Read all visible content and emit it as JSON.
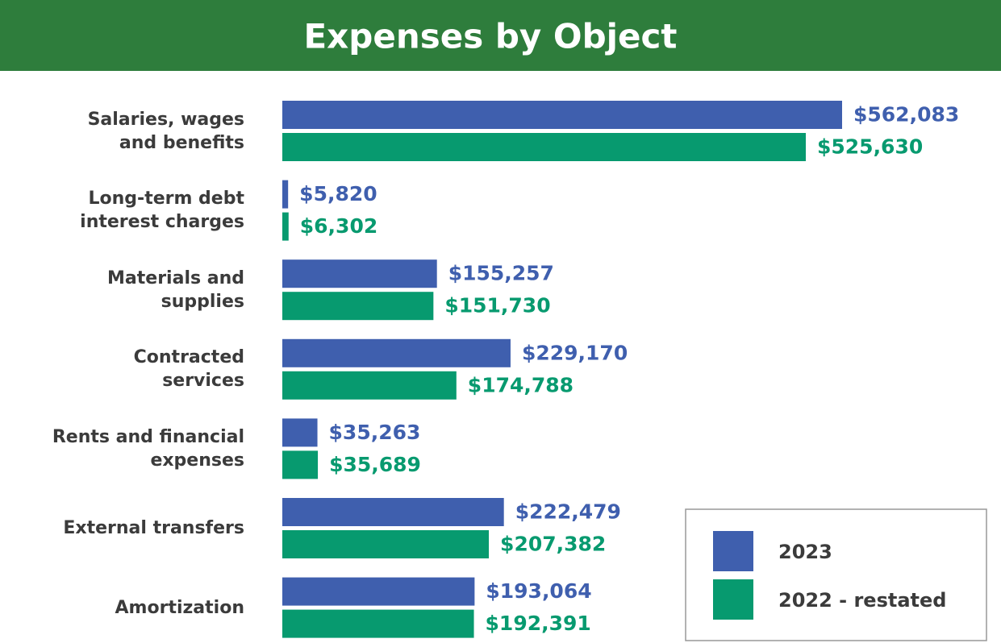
{
  "chart_data": {
    "type": "bar",
    "orientation": "horizontal",
    "title": "Expenses by Object",
    "categories": [
      "Salaries, wages\nand benefits",
      "Long-term debt\ninterest charges",
      "Materials and\nsupplies",
      "Contracted\nservices",
      "Rents and financial\nexpenses",
      "External transfers",
      "Amortization"
    ],
    "series": [
      {
        "name": "2023",
        "color": "#3f5fae",
        "values": [
          562083,
          5820,
          155257,
          229170,
          35263,
          222479,
          193064
        ],
        "value_labels": [
          "$562,083",
          "$5,820",
          "$155,257",
          "$229,170",
          "$35,263",
          "$222,479",
          "$193,064"
        ]
      },
      {
        "name": "2022 - restated",
        "color": "#079a6f",
        "values": [
          525630,
          6302,
          151730,
          174788,
          35689,
          207382,
          192391
        ],
        "value_labels": [
          "$525,630",
          "$6,302",
          "$151,730",
          "$174,788",
          "$35,689",
          "$207,382",
          "$192,391"
        ]
      }
    ],
    "legend": "bottom-right"
  }
}
